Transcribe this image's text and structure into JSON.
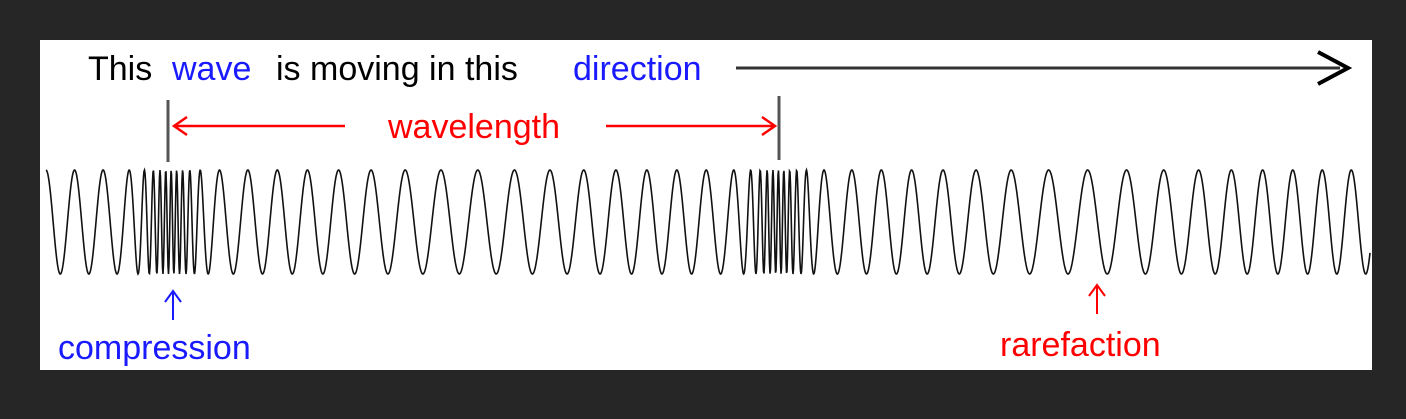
{
  "diagram": {
    "direction_text": {
      "part1": "This",
      "part2": "wave",
      "part3": "is moving in this",
      "part4": "direction"
    },
    "wavelength_label": "wavelength",
    "compression_label": "compression",
    "rarefaction_label": "rarefaction",
    "colors": {
      "background": "#262626",
      "panel": "#ffffff",
      "text": "#000000",
      "blue": "#1a1aff",
      "red": "#ff0000",
      "arrow": "#333333",
      "wave": "#111111"
    }
  }
}
